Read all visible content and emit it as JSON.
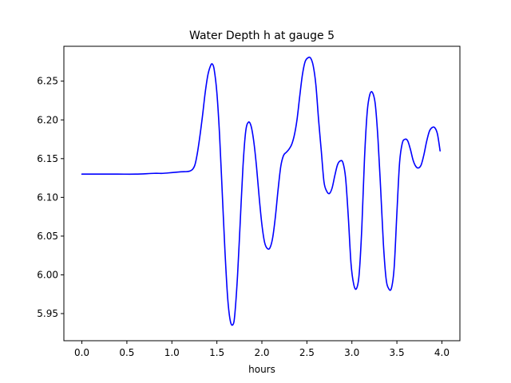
{
  "chart_data": {
    "type": "line",
    "title": "Water Depth h at gauge 5",
    "xlabel": "hours",
    "ylabel": "",
    "xlim": [
      -0.2,
      4.2
    ],
    "ylim": [
      5.915,
      6.295
    ],
    "xticks": [
      0.0,
      0.5,
      1.0,
      1.5,
      2.0,
      2.5,
      3.0,
      3.5,
      4.0
    ],
    "xtick_labels": [
      "0.0",
      "0.5",
      "1.0",
      "1.5",
      "2.0",
      "2.5",
      "3.0",
      "3.5",
      "4.0"
    ],
    "yticks": [
      5.95,
      6.0,
      6.05,
      6.1,
      6.15,
      6.2,
      6.25
    ],
    "ytick_labels": [
      "5.95",
      "6.00",
      "6.05",
      "6.10",
      "6.15",
      "6.20",
      "6.25"
    ],
    "grid": false,
    "series": [
      {
        "color": "#0000ff",
        "x": [
          0.0,
          0.2,
          0.4,
          0.6,
          0.8,
          0.9,
          1.0,
          1.1,
          1.2,
          1.25,
          1.28,
          1.31,
          1.34,
          1.37,
          1.4,
          1.43,
          1.45,
          1.47,
          1.5,
          1.53,
          1.56,
          1.59,
          1.62,
          1.65,
          1.68,
          1.7,
          1.73,
          1.76,
          1.79,
          1.82,
          1.85,
          1.88,
          1.91,
          1.94,
          1.97,
          2.0,
          2.03,
          2.06,
          2.09,
          2.12,
          2.15,
          2.18,
          2.21,
          2.24,
          2.27,
          2.3,
          2.33,
          2.36,
          2.39,
          2.42,
          2.45,
          2.48,
          2.51,
          2.54,
          2.57,
          2.6,
          2.63,
          2.66,
          2.69,
          2.72,
          2.75,
          2.78,
          2.81,
          2.84,
          2.87,
          2.9,
          2.93,
          2.96,
          2.99,
          3.02,
          3.05,
          3.08,
          3.11,
          3.14,
          3.17,
          3.2,
          3.23,
          3.26,
          3.29,
          3.32,
          3.35,
          3.38,
          3.41,
          3.44,
          3.47,
          3.5,
          3.53,
          3.56,
          3.59,
          3.62,
          3.65,
          3.68,
          3.71,
          3.74,
          3.77,
          3.8,
          3.83,
          3.86,
          3.89,
          3.92,
          3.95,
          3.98
        ],
        "y": [
          6.13,
          6.13,
          6.13,
          6.13,
          6.131,
          6.131,
          6.132,
          6.133,
          6.134,
          6.14,
          6.155,
          6.178,
          6.205,
          6.235,
          6.258,
          6.27,
          6.272,
          6.265,
          6.235,
          6.18,
          6.105,
          6.03,
          5.97,
          5.94,
          5.936,
          5.95,
          6.0,
          6.07,
          6.14,
          6.185,
          6.197,
          6.192,
          6.172,
          6.14,
          6.1,
          6.065,
          6.042,
          6.034,
          6.035,
          6.048,
          6.075,
          6.11,
          6.14,
          6.154,
          6.158,
          6.162,
          6.168,
          6.18,
          6.2,
          6.23,
          6.258,
          6.275,
          6.28,
          6.28,
          6.27,
          6.245,
          6.2,
          6.16,
          6.12,
          6.108,
          6.105,
          6.112,
          6.128,
          6.142,
          6.147,
          6.145,
          6.125,
          6.075,
          6.015,
          5.988,
          5.982,
          6.0,
          6.06,
          6.15,
          6.21,
          6.233,
          6.235,
          6.22,
          6.175,
          6.11,
          6.04,
          5.995,
          5.982,
          5.983,
          6.01,
          6.08,
          6.145,
          6.17,
          6.175,
          6.173,
          6.162,
          6.148,
          6.14,
          6.138,
          6.142,
          6.155,
          6.172,
          6.185,
          6.19,
          6.19,
          6.182,
          6.16
        ]
      }
    ]
  }
}
